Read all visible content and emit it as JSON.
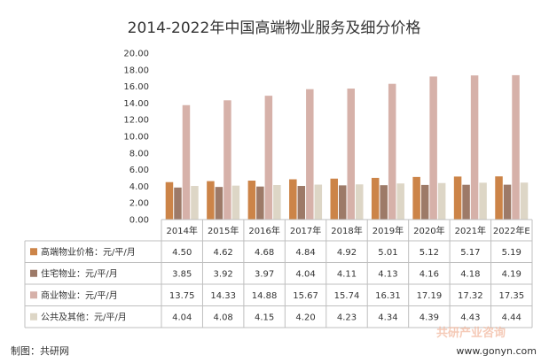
{
  "chart_data": {
    "type": "bar",
    "title": "2014-2022年中国高端物业服务及细分价格",
    "categories": [
      "2014年",
      "2015年",
      "2016年",
      "2017年",
      "2018年",
      "2019年",
      "2020年",
      "2021年",
      "2022年E"
    ],
    "ylim": [
      0,
      20
    ],
    "yticks": [
      "0.00",
      "2.00",
      "4.00",
      "6.00",
      "8.00",
      "10.00",
      "12.00",
      "14.00",
      "16.00",
      "18.00",
      "20.00"
    ],
    "grid": false,
    "legend": "data-table",
    "series": [
      {
        "name": "高端物业价格：元/平/月",
        "color": "#cc8448",
        "values": [
          4.5,
          4.62,
          4.68,
          4.84,
          4.92,
          5.01,
          5.12,
          5.17,
          5.19
        ],
        "labels": [
          "4.50",
          "4.62",
          "4.68",
          "4.84",
          "4.92",
          "5.01",
          "5.12",
          "5.17",
          "5.19"
        ]
      },
      {
        "name": "住宅物业：元/平/月",
        "color": "#9d7a68",
        "values": [
          3.85,
          3.92,
          3.97,
          4.04,
          4.11,
          4.13,
          4.16,
          4.18,
          4.19
        ],
        "labels": [
          "3.85",
          "3.92",
          "3.97",
          "4.04",
          "4.11",
          "4.13",
          "4.16",
          "4.18",
          "4.19"
        ]
      },
      {
        "name": "商业物业：元/平/月",
        "color": "#d6b1a9",
        "values": [
          13.75,
          14.33,
          14.88,
          15.67,
          15.74,
          16.31,
          17.19,
          17.32,
          17.35
        ],
        "labels": [
          "13.75",
          "14.33",
          "14.88",
          "15.67",
          "15.74",
          "16.31",
          "17.19",
          "17.32",
          "17.35"
        ]
      },
      {
        "name": "公共及其他：元/平/月",
        "color": "#ddd6c6",
        "values": [
          4.04,
          4.08,
          4.15,
          4.2,
          4.23,
          4.34,
          4.39,
          4.43,
          4.44
        ],
        "labels": [
          "4.04",
          "4.08",
          "4.15",
          "4.20",
          "4.23",
          "4.34",
          "4.39",
          "4.43",
          "4.44"
        ]
      }
    ]
  },
  "footer": {
    "source": "制图：共研网",
    "website": "www.gonyn.com",
    "watermark": "共研产业咨询"
  }
}
